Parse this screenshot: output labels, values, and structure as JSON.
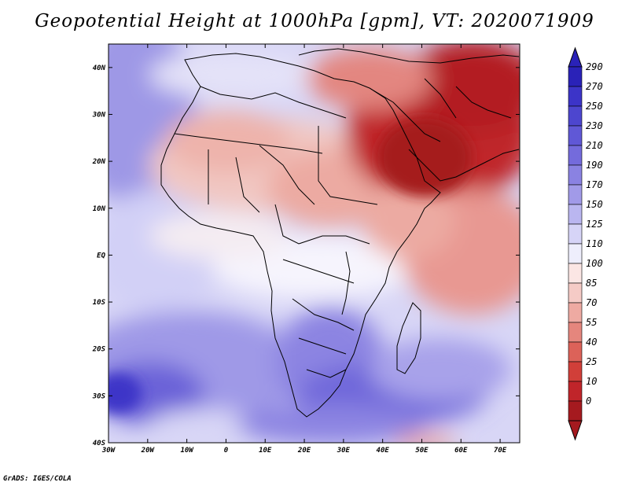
{
  "title": "Geopotential Height at 1000hPa [gpm], VT: 2020071909",
  "credit": "GrADS: IGES/COLA",
  "map": {
    "projection": "lat-lon",
    "lon_range": [
      -30,
      75
    ],
    "lat_range": [
      -40,
      45
    ],
    "lat_labels": [
      "40N",
      "30N",
      "20N",
      "10N",
      "EQ",
      "10S",
      "20S",
      "30S",
      "40S"
    ],
    "lon_labels": [
      "30W",
      "20W",
      "10W",
      "0",
      "10E",
      "20E",
      "30E",
      "40E",
      "50E",
      "60E",
      "70E"
    ]
  },
  "colorbar": {
    "levels": [
      "290",
      "270",
      "250",
      "230",
      "210",
      "190",
      "170",
      "150",
      "125",
      "110",
      "100",
      "85",
      "70",
      "55",
      "40",
      "25",
      "10",
      "0"
    ],
    "colors": [
      "#2a22b8",
      "#3c34c8",
      "#4d46cf",
      "#6058d6",
      "#746bdc",
      "#8a82e2",
      "#a19ae8",
      "#bab6f0",
      "#d6d4f7",
      "#eeeefc",
      "#fbe6e4",
      "#f5cbc6",
      "#eeaaa2",
      "#e5867d",
      "#dc6259",
      "#d13f39",
      "#c0252a",
      "#a51a1f"
    ]
  }
}
